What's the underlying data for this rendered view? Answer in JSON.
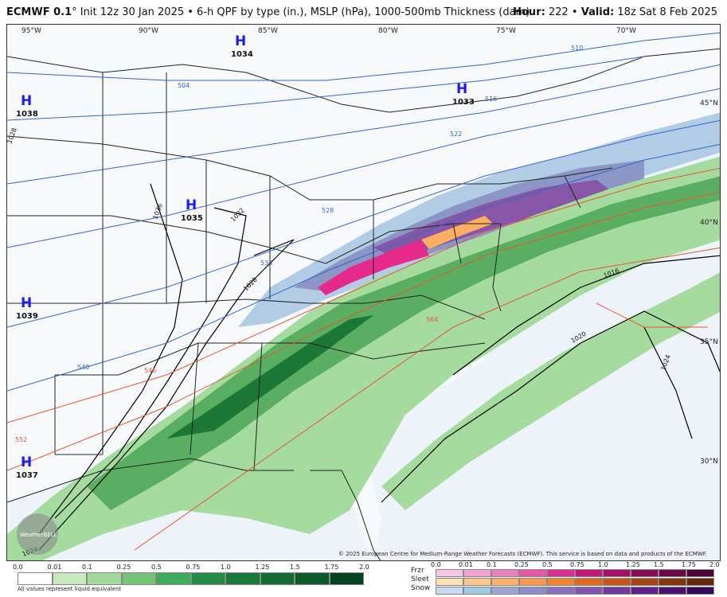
{
  "header": {
    "model": "ECMWF 0.1",
    "degree": "°",
    "description": "Init 12z 30 Jan 2025 • 6-h QPF by type (in.), MSLP (hPa), 1000-500mb Thickness (dam)",
    "hour_label": "Hour:",
    "hour_value": "222",
    "valid_label": "Valid:",
    "valid_value": "18z Sat 8 Feb 2025"
  },
  "map": {
    "lon_labels": [
      "95°W",
      "90°W",
      "85°W",
      "80°W",
      "75°W",
      "70°W"
    ],
    "lat_labels": [
      "45°N",
      "40°N",
      "35°N",
      "30°N"
    ],
    "highs": [
      {
        "letter": "H",
        "pressure": "1034"
      },
      {
        "letter": "H",
        "pressure": "1038"
      },
      {
        "letter": "H",
        "pressure": "1033"
      },
      {
        "letter": "H",
        "pressure": "1035"
      },
      {
        "letter": "H",
        "pressure": "1039"
      },
      {
        "letter": "H",
        "pressure": "1037"
      }
    ],
    "isobar_labels": [
      "1036",
      "1032",
      "1028",
      "1016",
      "1020",
      "1024",
      "1024",
      "1028"
    ],
    "thickness_labels": [
      "504",
      "510",
      "516",
      "522",
      "528",
      "534",
      "540",
      "546",
      "552",
      "564"
    ],
    "colors": {
      "rain_light": "#a6dba0",
      "rain_mid": "#5aae61",
      "rain_dark": "#1b7837",
      "snow_light": "#b3cce6",
      "snow_mid": "#8c96c6",
      "snow_dark": "#8856a7",
      "frzr": "#e7298a",
      "sleet": "#fdae61",
      "isobar": "#000000",
      "thickness_cold": "#3366cc",
      "thickness_warm": "#e6552e",
      "water": "#eef3fa",
      "land": "#ffffff"
    }
  },
  "copyright": "© 2025 European Centre for Medium-Range Weather Forecasts (ECMWF). This service is based on data and products of the ECMWF.",
  "logo_text": "WeatherBELL",
  "legend": {
    "rain_ticks": [
      "0.0",
      "0.01",
      "0.1",
      "0.25",
      "0.5",
      "0.75",
      "1.0",
      "1.25",
      "1.5",
      "1.75",
      "2.0"
    ],
    "rain_colors": [
      "#ffffff",
      "#c7e9c0",
      "#a1d99b",
      "#74c476",
      "#41ab5d",
      "#238b45",
      "#1a7a3c",
      "#136a33",
      "#0c5a2a",
      "#054220"
    ],
    "note": "All values represent liquid equivalent",
    "ptype_labels": [
      "Frzr",
      "Sleet",
      "Snow"
    ],
    "ptype_ticks": [
      "0.0",
      "0.01",
      "0.1",
      "0.25",
      "0.5",
      "0.75",
      "1.0",
      "1.25",
      "1.5",
      "1.75",
      "2.0"
    ],
    "frzr_colors": [
      "#f4c6e1",
      "#f0a4d0",
      "#ea7fbd",
      "#e456a8",
      "#d83191",
      "#c3177a",
      "#a60f6a",
      "#880b5a",
      "#6a0848",
      "#4d0536"
    ],
    "sleet_colors": [
      "#fde0b4",
      "#fdc98a",
      "#fcb066",
      "#f99a4a",
      "#f2822e",
      "#e06a1c",
      "#c85516",
      "#a84312",
      "#86340e",
      "#66270a"
    ],
    "snow_colors": [
      "#c6dbef",
      "#9ecae1",
      "#9aa5d6",
      "#8c8ccc",
      "#8a6fc0",
      "#8054b0",
      "#70389c",
      "#5e2388",
      "#4a1270",
      "#36085a"
    ]
  }
}
